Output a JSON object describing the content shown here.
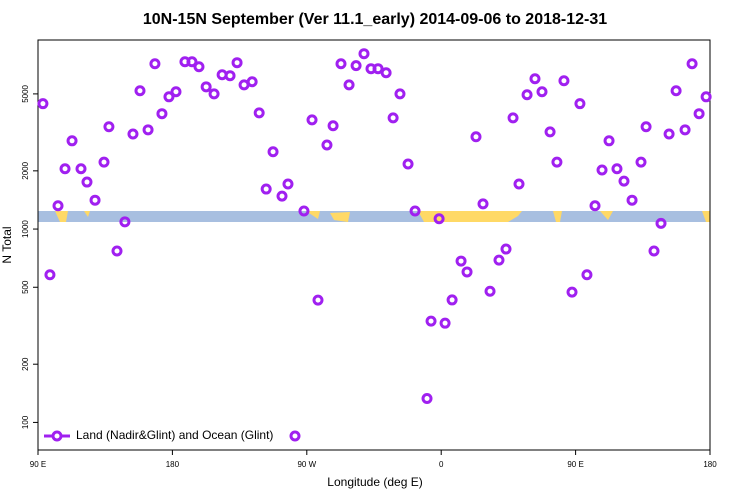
{
  "chart_data": {
    "type": "scatter",
    "title": "10N-15N September (Ver 11.1_early)   2014-09-06 to 2018-12-31",
    "x_label": "Longitude (deg E)",
    "y_label": "N Total",
    "xlim": [
      90,
      540
    ],
    "ylim": [
      72,
      9500
    ],
    "y_log_scale": true,
    "xticks": [
      {
        "value": 90,
        "label": "90 E"
      },
      {
        "value": 180,
        "label": "180"
      },
      {
        "value": 270,
        "label": "90 W"
      },
      {
        "value": 360,
        "label": "0"
      },
      {
        "value": 450,
        "label": "90 E"
      },
      {
        "value": 540,
        "label": "180"
      }
    ],
    "yticks": [
      100,
      200,
      500,
      1000,
      2000,
      5000
    ],
    "legend": "bottom-left",
    "x": [
      93.3,
      98.0,
      103.4,
      108.1,
      112.8,
      118.8,
      122.8,
      128.2,
      134.2,
      137.5,
      142.9,
      148.2,
      153.6,
      158.3,
      163.7,
      168.3,
      173.0,
      177.7,
      182.4,
      188.4,
      193.1,
      197.8,
      202.6,
      207.9,
      213.3,
      218.6,
      223.3,
      228.0,
      233.4,
      238.1,
      242.8,
      247.4,
      253.4,
      257.4,
      268.1,
      273.5,
      277.5,
      283.5,
      287.6,
      292.9,
      298.3,
      303.0,
      308.3,
      313.0,
      317.7,
      323.1,
      327.8,
      332.4,
      337.8,
      342.5,
      350.5,
      353.2,
      358.6,
      362.6,
      367.3,
      373.3,
      377.3,
      383.3,
      388.0,
      392.7,
      398.7,
      403.4,
      408.1,
      412.1,
      417.5,
      422.8,
      427.5,
      432.9,
      437.5,
      442.2,
      447.6,
      452.9,
      457.6,
      463.0,
      467.7,
      472.4,
      477.7,
      482.4,
      487.8,
      493.8,
      497.2,
      502.5,
      507.2,
      512.6,
      517.3,
      523.3,
      528.0,
      532.7,
      537.4
    ],
    "series": [
      {
        "name": "Land (Nadir&Glint) and Ocean (Glint)",
        "color": "#a020f0",
        "values": [
          4450,
          580,
          1320,
          2050,
          2860,
          2050,
          1750,
          1410,
          2220,
          3380,
          770,
          1090,
          3100,
          5190,
          3260,
          7160,
          3950,
          4830,
          5130,
          7330,
          7330,
          6910,
          5440,
          5000,
          6280,
          6210,
          7250,
          5570,
          5780,
          3990,
          1610,
          2510,
          1480,
          1710,
          1240,
          3670,
          429,
          2720,
          3420,
          7160,
          5570,
          7000,
          8070,
          6750,
          6750,
          6430,
          3760,
          5000,
          2170,
          1240,
          133,
          334,
          1130,
          326,
          430,
          683,
          600,
          3000,
          1350,
          477,
          691,
          788,
          3760,
          1710,
          4950,
          5990,
          5130,
          3180,
          2220,
          5850,
          472,
          4450,
          580,
          1320,
          2020,
          2860,
          2050,
          1770,
          1410,
          2220,
          3380,
          770,
          1070,
          3100,
          5190,
          3260,
          7160,
          3950,
          4830
        ]
      }
    ]
  }
}
